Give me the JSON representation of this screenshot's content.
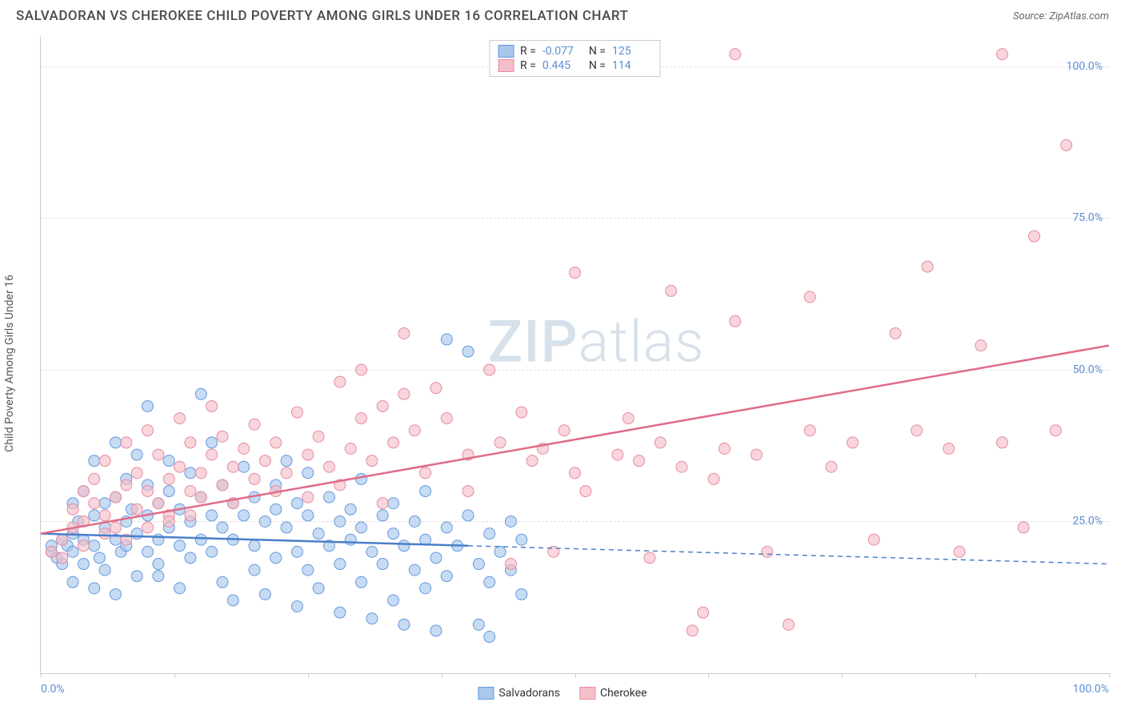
{
  "header": {
    "title": "SALVADORAN VS CHEROKEE CHILD POVERTY AMONG GIRLS UNDER 16 CORRELATION CHART",
    "source_prefix": "Source: ",
    "source_name": "ZipAtlas.com"
  },
  "chart": {
    "type": "scatter",
    "y_axis_label": "Child Poverty Among Girls Under 16",
    "xlim": [
      0,
      100
    ],
    "ylim": [
      0,
      105
    ],
    "x_tick_labels": {
      "min": "0.0%",
      "max": "100.0%"
    },
    "x_tick_positions": [
      0,
      12.5,
      25,
      37.5,
      50,
      62.5,
      75,
      87.5,
      100
    ],
    "y_ticks": [
      {
        "value": 25,
        "label": "25.0%"
      },
      {
        "value": 50,
        "label": "50.0%"
      },
      {
        "value": 75,
        "label": "75.0%"
      },
      {
        "value": 100,
        "label": "100.0%"
      }
    ],
    "grid_color": "#dddddd",
    "background_color": "#ffffff",
    "marker_radius": 7,
    "marker_stroke_width": 1,
    "trend_line_width": 2.5,
    "series": [
      {
        "name": "Salvadorans",
        "fill_color": "#a9c7ec",
        "stroke_color": "#6699dd",
        "line_color": "#4a7fc8",
        "R": "-0.077",
        "N": "125",
        "trend": {
          "x1": 0,
          "y1": 23,
          "x2": 40,
          "y2": 21,
          "x2_dash": 100,
          "y2_dash": 18
        },
        "points": [
          [
            1,
            20
          ],
          [
            1,
            21
          ],
          [
            1.5,
            19
          ],
          [
            2,
            22
          ],
          [
            2,
            18
          ],
          [
            2.5,
            21
          ],
          [
            3,
            23
          ],
          [
            3,
            20
          ],
          [
            3,
            28
          ],
          [
            3.5,
            25
          ],
          [
            4,
            22
          ],
          [
            4,
            18
          ],
          [
            4,
            30
          ],
          [
            5,
            26
          ],
          [
            5,
            21
          ],
          [
            5,
            35
          ],
          [
            5.5,
            19
          ],
          [
            6,
            24
          ],
          [
            6,
            28
          ],
          [
            6,
            17
          ],
          [
            7,
            29
          ],
          [
            7,
            22
          ],
          [
            7,
            38
          ],
          [
            7.5,
            20
          ],
          [
            8,
            25
          ],
          [
            8,
            32
          ],
          [
            8,
            21
          ],
          [
            8.5,
            27
          ],
          [
            9,
            23
          ],
          [
            9,
            36
          ],
          [
            10,
            26
          ],
          [
            10,
            20
          ],
          [
            10,
            31
          ],
          [
            10,
            44
          ],
          [
            11,
            22
          ],
          [
            11,
            28
          ],
          [
            11,
            16
          ],
          [
            12,
            30
          ],
          [
            12,
            24
          ],
          [
            12,
            35
          ],
          [
            13,
            21
          ],
          [
            13,
            27
          ],
          [
            13,
            14
          ],
          [
            14,
            33
          ],
          [
            14,
            19
          ],
          [
            14,
            25
          ],
          [
            15,
            29
          ],
          [
            15,
            22
          ],
          [
            15,
            46
          ],
          [
            16,
            26
          ],
          [
            16,
            20
          ],
          [
            16,
            38
          ],
          [
            17,
            24
          ],
          [
            17,
            15
          ],
          [
            17,
            31
          ],
          [
            18,
            28
          ],
          [
            18,
            22
          ],
          [
            18,
            12
          ],
          [
            19,
            26
          ],
          [
            19,
            34
          ],
          [
            20,
            21
          ],
          [
            20,
            29
          ],
          [
            20,
            17
          ],
          [
            21,
            25
          ],
          [
            21,
            13
          ],
          [
            22,
            31
          ],
          [
            22,
            19
          ],
          [
            22,
            27
          ],
          [
            23,
            24
          ],
          [
            23,
            35
          ],
          [
            24,
            20
          ],
          [
            24,
            28
          ],
          [
            24,
            11
          ],
          [
            25,
            26
          ],
          [
            25,
            17
          ],
          [
            25,
            33
          ],
          [
            26,
            23
          ],
          [
            26,
            14
          ],
          [
            27,
            29
          ],
          [
            27,
            21
          ],
          [
            28,
            25
          ],
          [
            28,
            18
          ],
          [
            28,
            10
          ],
          [
            29,
            27
          ],
          [
            29,
            22
          ],
          [
            30,
            24
          ],
          [
            30,
            15
          ],
          [
            30,
            32
          ],
          [
            31,
            20
          ],
          [
            31,
            9
          ],
          [
            32,
            26
          ],
          [
            32,
            18
          ],
          [
            33,
            23
          ],
          [
            33,
            12
          ],
          [
            33,
            28
          ],
          [
            34,
            21
          ],
          [
            34,
            8
          ],
          [
            35,
            25
          ],
          [
            35,
            17
          ],
          [
            36,
            22
          ],
          [
            36,
            14
          ],
          [
            36,
            30
          ],
          [
            37,
            19
          ],
          [
            37,
            7
          ],
          [
            38,
            24
          ],
          [
            38,
            16
          ],
          [
            38,
            55
          ],
          [
            39,
            21
          ],
          [
            40,
            26
          ],
          [
            40,
            53
          ],
          [
            41,
            18
          ],
          [
            41,
            8
          ],
          [
            42,
            23
          ],
          [
            42,
            15
          ],
          [
            42,
            6
          ],
          [
            43,
            20
          ],
          [
            44,
            25
          ],
          [
            44,
            17
          ],
          [
            45,
            22
          ],
          [
            45,
            13
          ],
          [
            3,
            15
          ],
          [
            5,
            14
          ],
          [
            7,
            13
          ],
          [
            9,
            16
          ],
          [
            11,
            18
          ]
        ]
      },
      {
        "name": "Cherokee",
        "fill_color": "#f4c0ca",
        "stroke_color": "#e88ba0",
        "line_color": "#e06b88",
        "R": "0.445",
        "N": "114",
        "trend": {
          "x1": 0,
          "y1": 23,
          "x2": 100,
          "y2": 54
        },
        "points": [
          [
            2,
            22
          ],
          [
            3,
            24
          ],
          [
            3,
            27
          ],
          [
            4,
            25
          ],
          [
            4,
            30
          ],
          [
            5,
            28
          ],
          [
            5,
            32
          ],
          [
            6,
            26
          ],
          [
            6,
            35
          ],
          [
            7,
            29
          ],
          [
            7,
            24
          ],
          [
            8,
            31
          ],
          [
            8,
            38
          ],
          [
            9,
            27
          ],
          [
            9,
            33
          ],
          [
            10,
            30
          ],
          [
            10,
            40
          ],
          [
            11,
            28
          ],
          [
            11,
            36
          ],
          [
            12,
            32
          ],
          [
            12,
            26
          ],
          [
            13,
            34
          ],
          [
            13,
            42
          ],
          [
            14,
            30
          ],
          [
            14,
            38
          ],
          [
            15,
            33
          ],
          [
            15,
            29
          ],
          [
            16,
            36
          ],
          [
            16,
            44
          ],
          [
            17,
            31
          ],
          [
            17,
            39
          ],
          [
            18,
            34
          ],
          [
            18,
            28
          ],
          [
            19,
            37
          ],
          [
            20,
            32
          ],
          [
            20,
            41
          ],
          [
            21,
            35
          ],
          [
            22,
            30
          ],
          [
            22,
            38
          ],
          [
            23,
            33
          ],
          [
            24,
            43
          ],
          [
            25,
            36
          ],
          [
            25,
            29
          ],
          [
            26,
            39
          ],
          [
            27,
            34
          ],
          [
            28,
            48
          ],
          [
            28,
            31
          ],
          [
            29,
            37
          ],
          [
            30,
            42
          ],
          [
            30,
            50
          ],
          [
            31,
            35
          ],
          [
            32,
            44
          ],
          [
            32,
            28
          ],
          [
            33,
            38
          ],
          [
            34,
            46
          ],
          [
            34,
            56
          ],
          [
            35,
            40
          ],
          [
            36,
            33
          ],
          [
            37,
            47
          ],
          [
            38,
            42
          ],
          [
            40,
            36
          ],
          [
            40,
            30
          ],
          [
            42,
            50
          ],
          [
            43,
            38
          ],
          [
            44,
            18
          ],
          [
            45,
            43
          ],
          [
            46,
            35
          ],
          [
            47,
            37
          ],
          [
            48,
            20
          ],
          [
            49,
            40
          ],
          [
            50,
            33
          ],
          [
            50,
            66
          ],
          [
            51,
            30
          ],
          [
            54,
            36
          ],
          [
            55,
            42
          ],
          [
            56,
            35
          ],
          [
            57,
            19
          ],
          [
            58,
            38
          ],
          [
            59,
            63
          ],
          [
            60,
            34
          ],
          [
            61,
            7
          ],
          [
            62,
            10
          ],
          [
            63,
            32
          ],
          [
            64,
            37
          ],
          [
            65,
            58
          ],
          [
            65,
            102
          ],
          [
            67,
            36
          ],
          [
            68,
            20
          ],
          [
            70,
            8
          ],
          [
            72,
            40
          ],
          [
            72,
            62
          ],
          [
            74,
            34
          ],
          [
            76,
            38
          ],
          [
            78,
            22
          ],
          [
            80,
            56
          ],
          [
            82,
            40
          ],
          [
            83,
            67
          ],
          [
            85,
            37
          ],
          [
            86,
            20
          ],
          [
            88,
            54
          ],
          [
            90,
            38
          ],
          [
            90,
            102
          ],
          [
            92,
            24
          ],
          [
            93,
            72
          ],
          [
            95,
            40
          ],
          [
            96,
            87
          ],
          [
            1,
            20
          ],
          [
            2,
            19
          ],
          [
            4,
            21
          ],
          [
            6,
            23
          ],
          [
            8,
            22
          ],
          [
            10,
            24
          ],
          [
            12,
            25
          ],
          [
            14,
            26
          ]
        ]
      }
    ]
  },
  "bottom_legend": {
    "items": [
      {
        "label": "Salvadorans",
        "fill": "#a9c7ec",
        "stroke": "#6699dd"
      },
      {
        "label": "Cherokee",
        "fill": "#f4c0ca",
        "stroke": "#e88ba0"
      }
    ]
  },
  "watermark": {
    "part1": "ZIP",
    "part2": "atlas"
  }
}
